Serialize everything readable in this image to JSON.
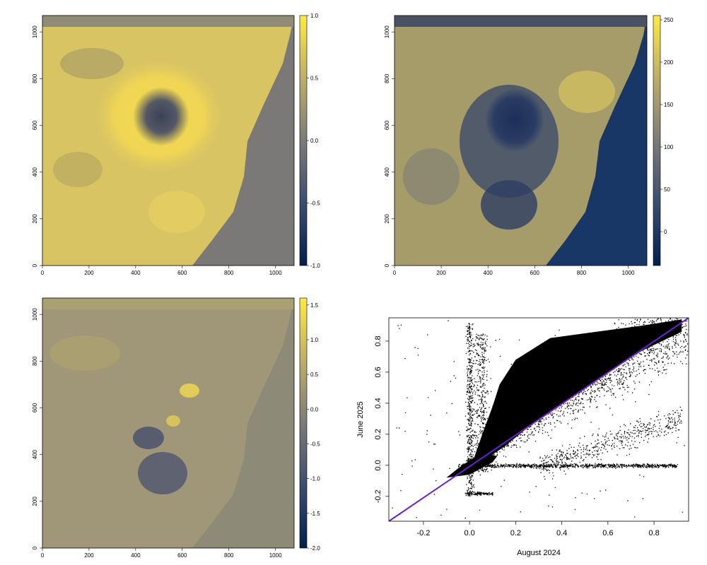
{
  "colors": {
    "cividis_low": "#00204c",
    "cividis_mid": "#7c7b78",
    "cividis_high": "#ffe945",
    "fit_line": "#6a1fd1",
    "points": "#000000"
  },
  "chart_data": [
    {
      "type": "heatmap",
      "xlim": [
        0,
        1080
      ],
      "ylim": [
        0,
        1070
      ],
      "x_ticks": [
        "0",
        "200",
        "400",
        "600",
        "800",
        "1000"
      ],
      "y_ticks": [
        "0",
        "200",
        "400",
        "600",
        "800",
        "1000"
      ],
      "colorbar": {
        "range": [
          -1.0,
          1.0
        ],
        "ticks": [
          "1.0",
          "0.5",
          "0.0",
          "-0.5",
          "-1.0"
        ]
      }
    },
    {
      "type": "heatmap",
      "xlim": [
        0,
        1080
      ],
      "ylim": [
        0,
        1070
      ],
      "x_ticks": [
        "0",
        "200",
        "400",
        "600",
        "800",
        "1000"
      ],
      "y_ticks": [
        "0",
        "200",
        "400",
        "600",
        "800",
        "1000"
      ],
      "colorbar": {
        "range": [
          -40,
          255
        ],
        "ticks": [
          "250",
          "200",
          "150",
          "100",
          "50",
          "0"
        ]
      }
    },
    {
      "type": "heatmap",
      "xlim": [
        0,
        1080
      ],
      "ylim": [
        0,
        1070
      ],
      "x_ticks": [
        "0",
        "200",
        "400",
        "600",
        "800",
        "1000"
      ],
      "y_ticks": [
        "0",
        "200",
        "400",
        "600",
        "800",
        "1000"
      ],
      "colorbar": {
        "range": [
          -2.0,
          1.6
        ],
        "ticks": [
          "1.5",
          "1.0",
          "0.5",
          "0.0",
          "-0.5",
          "-1.0",
          "-1.5",
          "-2.0"
        ]
      }
    },
    {
      "type": "scatter",
      "xlabel": "August 2024",
      "ylabel": "June 2025",
      "xlim": [
        -0.35,
        0.95
      ],
      "ylim": [
        -0.36,
        0.95
      ],
      "x_ticks": [
        "-0.2",
        "0.0",
        "0.2",
        "0.4",
        "0.6",
        "0.8"
      ],
      "y_ticks": [
        "-0.2",
        "0.0",
        "0.2",
        "0.4",
        "0.6",
        "0.8"
      ],
      "fit_line": {
        "x": [
          -0.35,
          0.95
        ],
        "y": [
          -0.36,
          0.95
        ]
      }
    }
  ]
}
